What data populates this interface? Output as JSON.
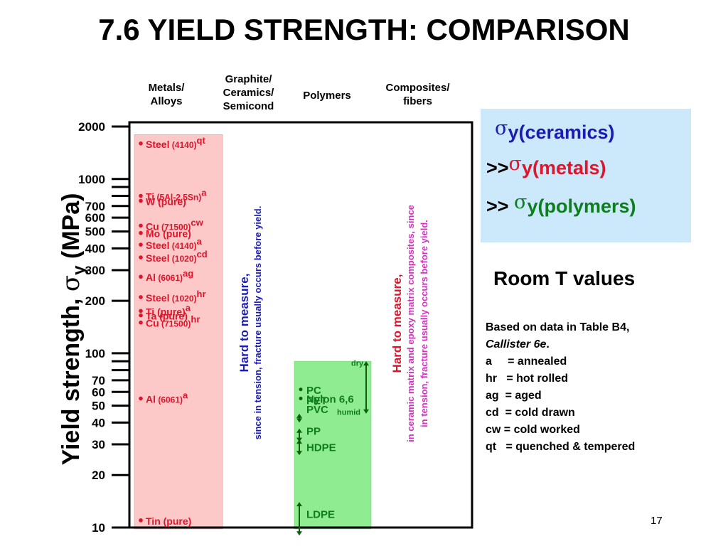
{
  "title": "7.6 YIELD STRENGTH: COMPARISON",
  "headers": {
    "metals": "Metals/\nAlloys",
    "graphite": "Graphite/\nCeramics/\nSemicond",
    "polymers": "Polymers",
    "composites": "Composites/\nfibers"
  },
  "colors": {
    "metals": "#e0142a",
    "ceramics": "#1c1cb4",
    "polymers": "#0d7d1d",
    "composites": "#d630c0",
    "metal_fill": "#fcc8c8",
    "polymer_fill": "#90ec90",
    "box_fill": "#cce8fb"
  },
  "ylabel_main": "Yield strength, ",
  "ylabel_sigma": "σ",
  "ylabel_sub": "y",
  "ylabel_unit": " (MPa)",
  "ceramics_note_title": "Hard to measure,",
  "ceramics_note_body": "since in tension, fracture usually occurs before yield.",
  "composites_note_title": "Hard to measure,",
  "composites_note_body1": "in ceramic matrix and epoxy matrix composites, since",
  "composites_note_body2": "in tension, fracture usually occurs before yield.",
  "compare_box": {
    "line1_sigma": "σ",
    "line1_text": "y(ceramics)",
    "line2_prefix": ">>",
    "line2_sigma": "σ",
    "line2_text": "y(metals)",
    "line3_prefix": ">> ",
    "line3_sigma": "σ",
    "line3_text": "y(polymers)"
  },
  "room_t": "Room T values",
  "notes": {
    "line1": "Based on data in Table B4,",
    "line2": "Callister 6e",
    "line2_end": ".",
    "rows": [
      "a     = annealed",
      "hr   = hot rolled",
      "ag  = aged",
      "cd  = cold drawn",
      "cw = cold worked",
      "qt   = quenched & tempered"
    ]
  },
  "page_number": "17",
  "chart_data": {
    "type": "scatter",
    "yscale": "log",
    "ylim": [
      10,
      2000
    ],
    "ylabel": "Yield strength, σy (MPa)",
    "yticks": [
      {
        "value": 2000,
        "label": "2000"
      },
      {
        "value": 1000,
        "label": "1000"
      },
      {
        "value": 700,
        "label": "700"
      },
      {
        "value": 600,
        "label": "600"
      },
      {
        "value": 500,
        "label": "500"
      },
      {
        "value": 400,
        "label": "400"
      },
      {
        "value": 300,
        "label": "300"
      },
      {
        "value": 200,
        "label": "200"
      },
      {
        "value": 100,
        "label": "100"
      },
      {
        "value": 70,
        "label": "70"
      },
      {
        "value": 60,
        "label": "60"
      },
      {
        "value": 50,
        "label": "50"
      },
      {
        "value": 40,
        "label": "40"
      },
      {
        "value": 30,
        "label": "30"
      },
      {
        "value": 20,
        "label": "20"
      },
      {
        "value": 10,
        "label": "10"
      }
    ],
    "minor_ticks": [
      900,
      800,
      90,
      80
    ],
    "categories": [
      "Metals/Alloys",
      "Graphite/Ceramics/Semicond",
      "Polymers",
      "Composites/fibers"
    ],
    "metals_range": [
      10,
      1800
    ],
    "polymers_range": [
      10,
      90
    ],
    "metals": [
      {
        "name": "Steel",
        "cond": "(4140)",
        "sup": "qt",
        "value": 1600
      },
      {
        "name": "Ti",
        "cond": "(5Al-2.5Sn)",
        "sup": "a",
        "value": 800
      },
      {
        "name": "W (pure)",
        "cond": "",
        "sup": "",
        "value": 750
      },
      {
        "name": "Cu",
        "cond": "(71500)",
        "sup": "cw",
        "value": 540
      },
      {
        "name": "Mo (pure)",
        "cond": "",
        "sup": "",
        "value": 490
      },
      {
        "name": "Steel",
        "cond": "(4140)",
        "sup": "a",
        "value": 420
      },
      {
        "name": "Steel",
        "cond": "(1020)",
        "sup": "cd",
        "value": 355
      },
      {
        "name": "Al",
        "cond": "(6061)",
        "sup": "ag",
        "value": 275
      },
      {
        "name": "Steel",
        "cond": "(1020)",
        "sup": "hr",
        "value": 210
      },
      {
        "name": "Ti (pure)",
        "cond": "",
        "sup": "a",
        "value": 175
      },
      {
        "name": "Ta (pure)",
        "cond": "",
        "sup": "",
        "value": 165
      },
      {
        "name": "Cu",
        "cond": "(71500)",
        "sup": "hr",
        "value": 150
      },
      {
        "name": "Al",
        "cond": "(6061)",
        "sup": "a",
        "value": 55
      },
      {
        "name": "Tin (pure)",
        "cond": "",
        "sup": "",
        "value": 11
      }
    ],
    "polymers": [
      {
        "name": "PC",
        "value": 62,
        "range": null
      },
      {
        "name": "Nylon 6,6",
        "value": 55,
        "range": [
          45,
          90
        ]
      },
      {
        "name": "PET",
        "value": 54,
        "range": null
      },
      {
        "name": "PVC",
        "value": 48,
        "range": [
          40,
          45
        ]
      },
      {
        "name": "PP",
        "value": 36,
        "range": [
          31,
          37
        ]
      },
      {
        "name": "HDPE",
        "value": 29,
        "range": [
          26,
          32
        ]
      },
      {
        "name": "LDPE",
        "value": 12,
        "range": [
          9,
          14
        ]
      }
    ],
    "polymer_annotations": {
      "dry": "dry",
      "humid": "humid"
    }
  }
}
